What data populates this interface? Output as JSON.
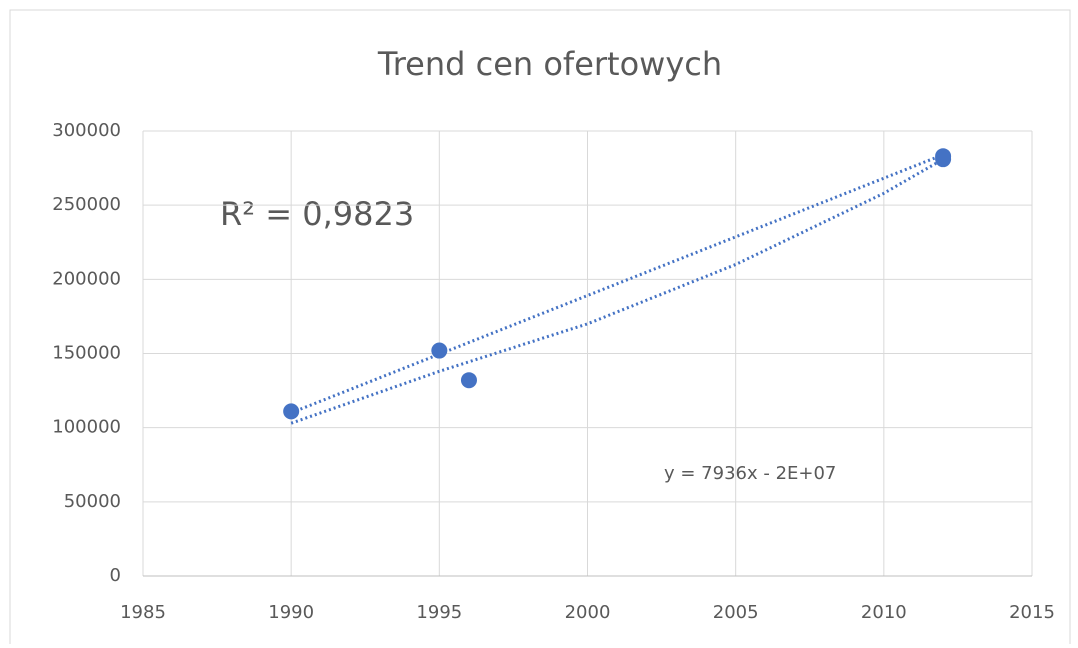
{
  "chart_data": {
    "type": "scatter",
    "title": "Trend cen ofertowych",
    "annotations": [
      "R² = 0,9823",
      "y = 7936x - 2E+07"
    ],
    "xlim": [
      1985,
      2015
    ],
    "xticks": [
      1985,
      1990,
      1995,
      2000,
      2005,
      2010,
      2015
    ],
    "ylim": [
      0,
      300000
    ],
    "yticks": [
      0,
      50000,
      100000,
      150000,
      200000,
      250000,
      300000
    ],
    "grid": true,
    "series": [
      {
        "color": "#4472c4",
        "draw": "markers",
        "x": [
          1990,
          1995,
          1996,
          2012,
          2012
        ],
        "values": [
          111000,
          152000,
          132000,
          281000,
          283000
        ]
      },
      {
        "color": "#4472c4",
        "draw": "dotted-line",
        "x": [
          1990,
          2012
        ],
        "values": [
          110000,
          284000
        ]
      },
      {
        "color": "#4472c4",
        "draw": "dotted-line",
        "x": [
          1990,
          1995,
          2000,
          2005,
          2010,
          2012
        ],
        "values": [
          103000,
          138000,
          170000,
          210000,
          258000,
          281000
        ]
      }
    ]
  }
}
